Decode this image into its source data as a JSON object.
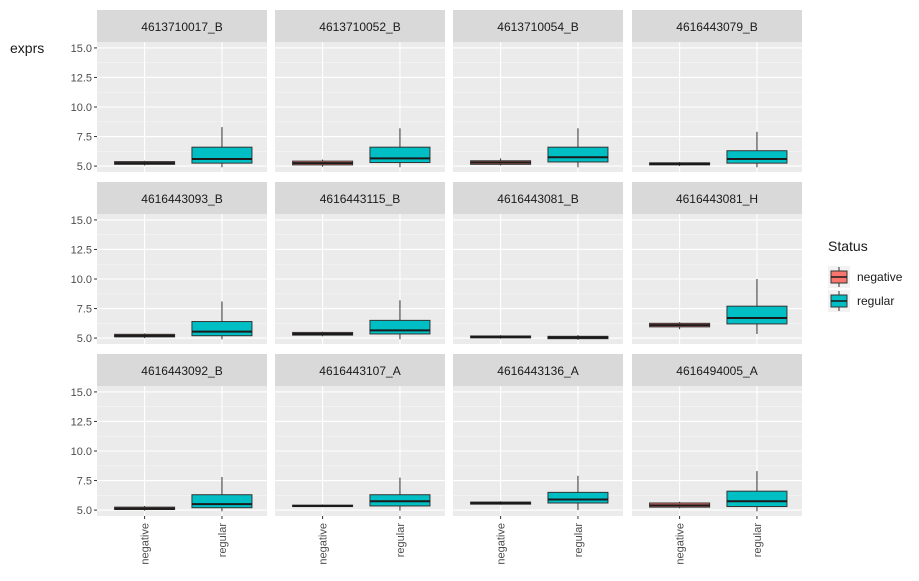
{
  "chart_data": {
    "type": "boxplot",
    "ylabel": "exprs",
    "xlabel": "",
    "yticks": [
      5.0,
      7.5,
      10.0,
      12.5,
      15.0
    ],
    "ytick_labels": [
      "5.0",
      "7.5",
      "10.0",
      "12.5",
      "15.0"
    ],
    "ylim": [
      4.5,
      15.5
    ],
    "categories": [
      "negative",
      "regular"
    ],
    "legend": {
      "title": "Status",
      "placement": "right",
      "entries": [
        {
          "label": "negative",
          "color": "#F8766D"
        },
        {
          "label": "regular",
          "color": "#00BFC4"
        }
      ]
    },
    "facet_background": "#EBEBEB",
    "strip_background": "#D9D9D9",
    "panels": [
      {
        "title": "4613710017_B",
        "boxes": [
          {
            "category": "negative",
            "min": 5.05,
            "q1": 5.15,
            "median": 5.25,
            "q3": 5.38,
            "max": 5.45
          },
          {
            "category": "regular",
            "min": 4.9,
            "q1": 5.25,
            "median": 5.6,
            "q3": 6.6,
            "max": 8.3
          }
        ]
      },
      {
        "title": "4613710052_B",
        "boxes": [
          {
            "category": "negative",
            "min": 4.95,
            "q1": 5.1,
            "median": 5.25,
            "q3": 5.42,
            "max": 5.55
          },
          {
            "category": "regular",
            "min": 4.9,
            "q1": 5.3,
            "median": 5.65,
            "q3": 6.6,
            "max": 8.2
          }
        ]
      },
      {
        "title": "4613710054_B",
        "boxes": [
          {
            "category": "negative",
            "min": 5.05,
            "q1": 5.15,
            "median": 5.3,
            "q3": 5.45,
            "max": 5.65
          },
          {
            "category": "regular",
            "min": 4.9,
            "q1": 5.35,
            "median": 5.75,
            "q3": 6.6,
            "max": 8.2
          }
        ]
      },
      {
        "title": "4616443079_B",
        "boxes": [
          {
            "category": "negative",
            "min": 5.0,
            "q1": 5.1,
            "median": 5.18,
            "q3": 5.28,
            "max": 5.35
          },
          {
            "category": "regular",
            "min": 4.9,
            "q1": 5.25,
            "median": 5.6,
            "q3": 6.3,
            "max": 7.9
          }
        ]
      },
      {
        "title": "4616443093_B",
        "boxes": [
          {
            "category": "negative",
            "min": 5.0,
            "q1": 5.1,
            "median": 5.2,
            "q3": 5.32,
            "max": 5.4
          },
          {
            "category": "regular",
            "min": 4.9,
            "q1": 5.2,
            "median": 5.55,
            "q3": 6.4,
            "max": 8.1
          }
        ]
      },
      {
        "title": "4616443115_B",
        "boxes": [
          {
            "category": "negative",
            "min": 5.15,
            "q1": 5.25,
            "median": 5.35,
            "q3": 5.48,
            "max": 5.55
          },
          {
            "category": "regular",
            "min": 4.9,
            "q1": 5.35,
            "median": 5.65,
            "q3": 6.5,
            "max": 8.2
          }
        ]
      },
      {
        "title": "4616443081_B",
        "boxes": [
          {
            "category": "negative",
            "min": 4.95,
            "q1": 5.02,
            "median": 5.1,
            "q3": 5.18,
            "max": 5.25
          },
          {
            "category": "regular",
            "min": 4.85,
            "q1": 4.95,
            "median": 5.05,
            "q3": 5.15,
            "max": 5.25
          }
        ]
      },
      {
        "title": "4616443081_H",
        "boxes": [
          {
            "category": "negative",
            "min": 5.75,
            "q1": 5.95,
            "median": 6.1,
            "q3": 6.25,
            "max": 6.35
          },
          {
            "category": "regular",
            "min": 5.35,
            "q1": 6.2,
            "median": 6.7,
            "q3": 7.7,
            "max": 10.0
          }
        ]
      },
      {
        "title": "4616443092_B",
        "boxes": [
          {
            "category": "negative",
            "min": 4.95,
            "q1": 5.05,
            "median": 5.12,
            "q3": 5.25,
            "max": 5.35
          },
          {
            "category": "regular",
            "min": 4.9,
            "q1": 5.2,
            "median": 5.5,
            "q3": 6.3,
            "max": 7.8
          }
        ]
      },
      {
        "title": "4616443107_A",
        "boxes": [
          {
            "category": "negative",
            "min": 5.25,
            "q1": 5.3,
            "median": 5.35,
            "q3": 5.42,
            "max": 5.48
          },
          {
            "category": "regular",
            "min": 4.95,
            "q1": 5.35,
            "median": 5.75,
            "q3": 6.3,
            "max": 7.75
          }
        ]
      },
      {
        "title": "4616443136_A",
        "boxes": [
          {
            "category": "negative",
            "min": 5.45,
            "q1": 5.5,
            "median": 5.6,
            "q3": 5.68,
            "max": 5.75
          },
          {
            "category": "regular",
            "min": 5.0,
            "q1": 5.6,
            "median": 5.9,
            "q3": 6.5,
            "max": 7.9
          }
        ]
      },
      {
        "title": "4616494005_A",
        "boxes": [
          {
            "category": "negative",
            "min": 5.15,
            "q1": 5.25,
            "median": 5.4,
            "q3": 5.6,
            "max": 5.7
          },
          {
            "category": "regular",
            "min": 4.9,
            "q1": 5.3,
            "median": 5.75,
            "q3": 6.6,
            "max": 8.3
          }
        ]
      }
    ]
  }
}
